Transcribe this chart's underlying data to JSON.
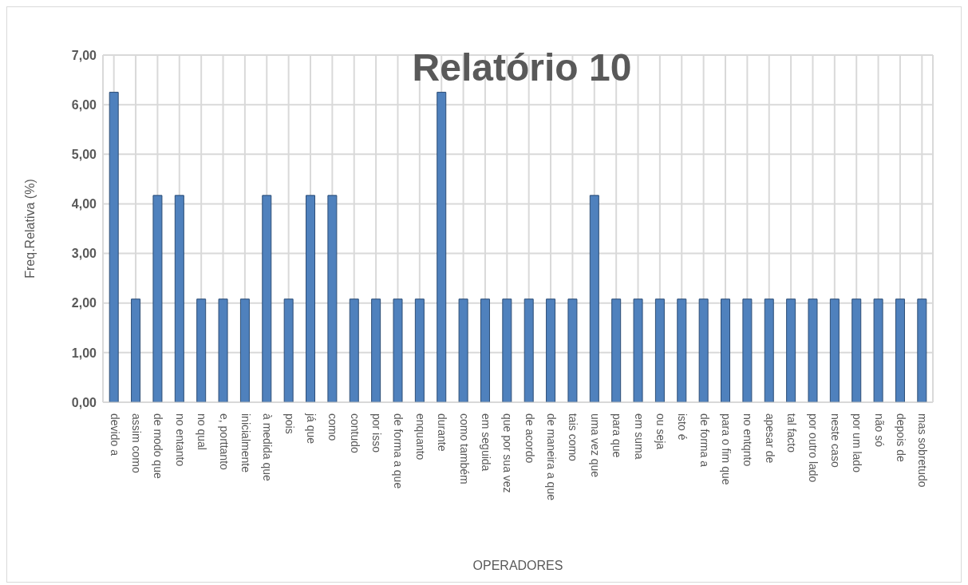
{
  "chart_data": {
    "type": "bar",
    "title": "Relatório 10",
    "xlabel": "OPERADORES",
    "ylabel": "Freq.Relativa (%)",
    "categories": [
      "devido a",
      "assim como",
      "de modo que",
      "no entanto",
      "no qual",
      "e, porttanto",
      "inicialmente",
      "à medida que",
      "pois",
      "já que",
      "como",
      "contudo",
      "por isso",
      "de forma a que",
      "enquanto",
      "durante",
      "como também",
      "em seguida",
      "que por sua vez",
      "de acordo",
      "de maneira a que",
      "tais como",
      "uma vez que",
      "para que",
      "em suma",
      "ou seja",
      "isto é",
      "de forma a",
      "para o fim que",
      "no entqnto",
      "apesar de",
      "tal facto",
      "por outro lado",
      "neste caso",
      "por um lado",
      "não só",
      "depois de",
      "mas sobretudo"
    ],
    "values": [
      6.25,
      2.08,
      4.17,
      4.17,
      2.08,
      2.08,
      2.08,
      4.17,
      2.08,
      4.17,
      4.17,
      2.08,
      2.08,
      2.08,
      2.08,
      6.25,
      2.08,
      2.08,
      2.08,
      2.08,
      2.08,
      2.08,
      4.17,
      2.08,
      2.08,
      2.08,
      2.08,
      2.08,
      2.08,
      2.08,
      2.08,
      2.08,
      2.08,
      2.08,
      2.08,
      2.08,
      2.08,
      2.08
    ],
    "color": "#4f81bd",
    "ylim": [
      0,
      7
    ],
    "yticks": [
      {
        "value": 0,
        "label": "0,00"
      },
      {
        "value": 1,
        "label": "1,00"
      },
      {
        "value": 2,
        "label": "2,00"
      },
      {
        "value": 3,
        "label": "3,00"
      },
      {
        "value": 4,
        "label": "4,00"
      },
      {
        "value": 5,
        "label": "5,00"
      },
      {
        "value": 6,
        "label": "6,00"
      },
      {
        "value": 7,
        "label": "7,00"
      }
    ],
    "grid": true
  }
}
